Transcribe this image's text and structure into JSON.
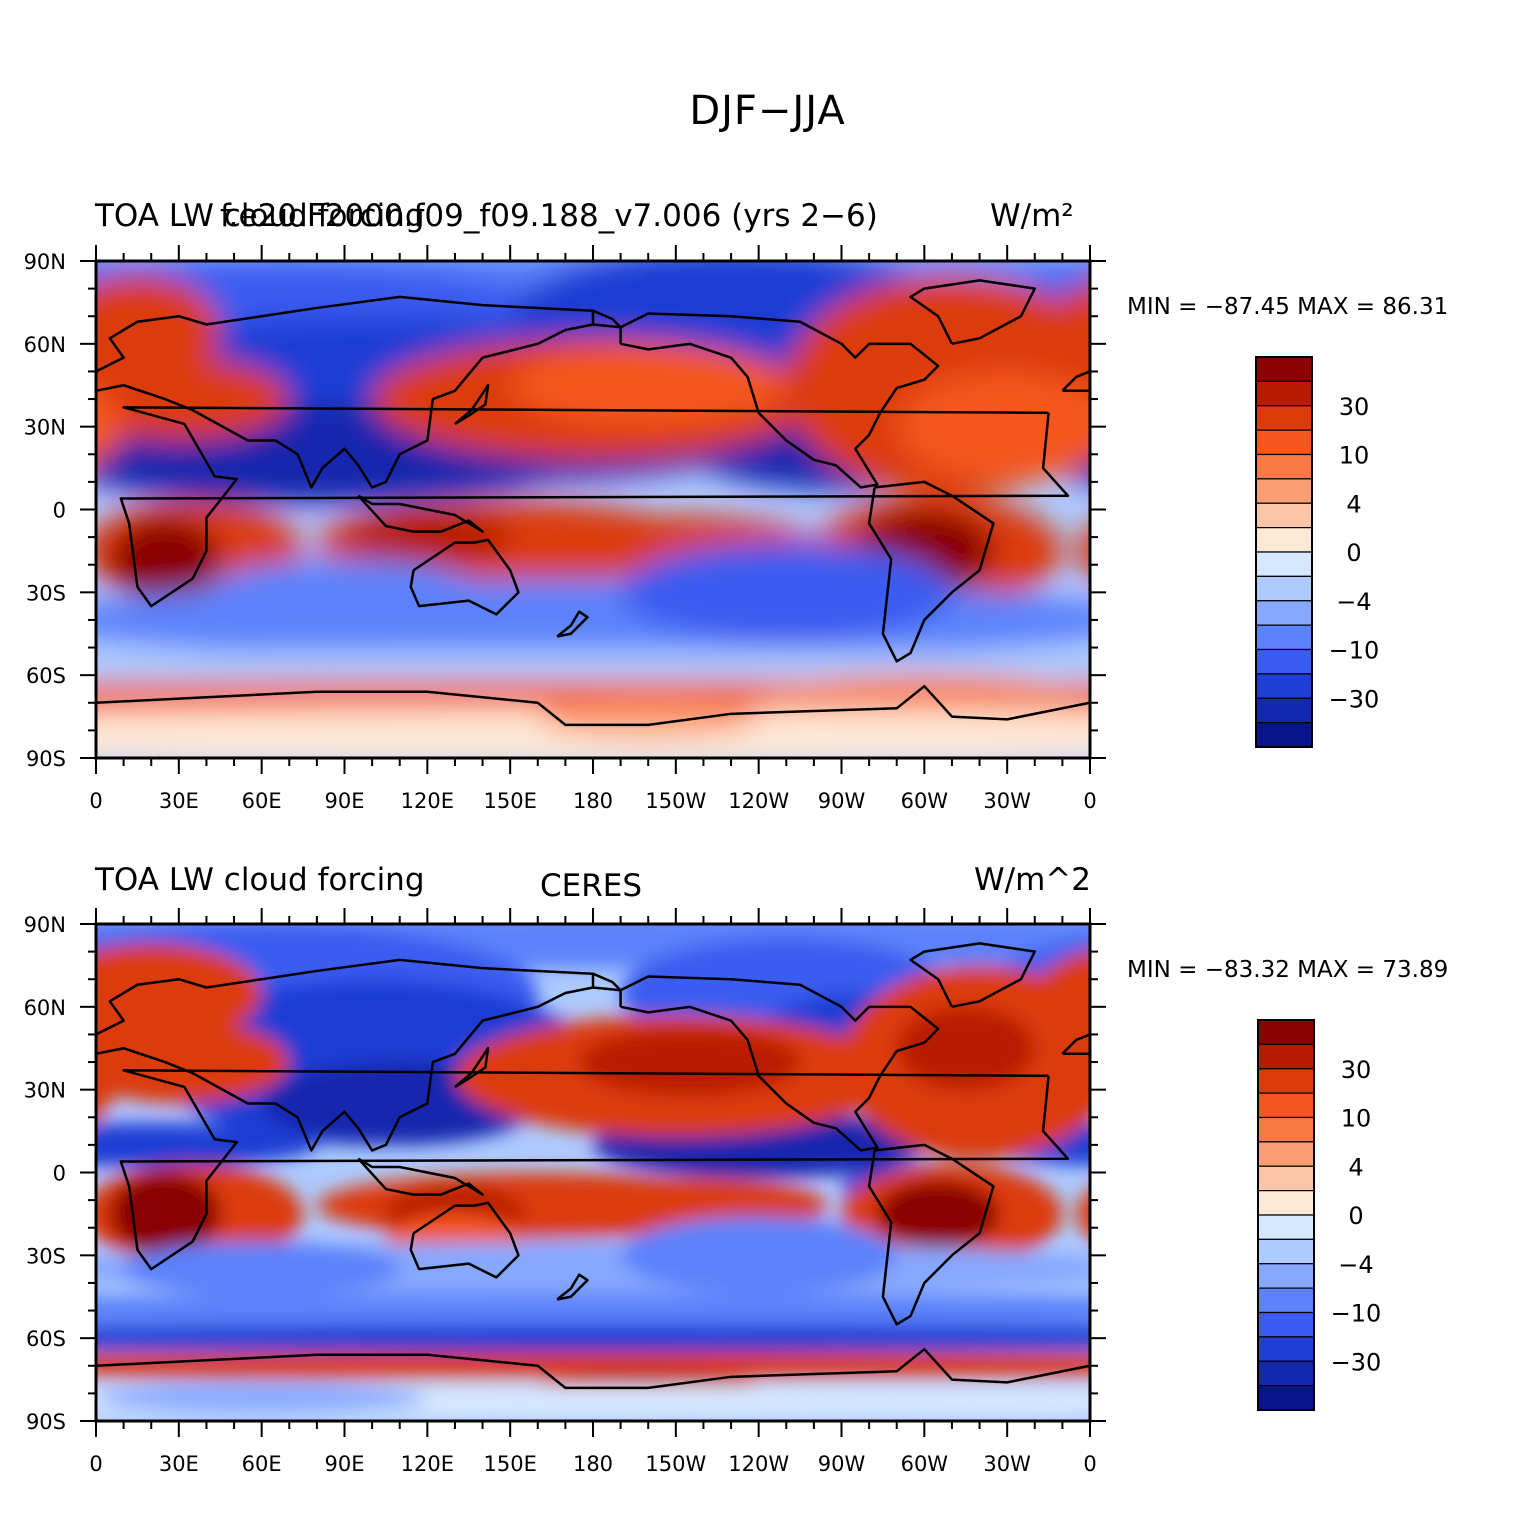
{
  "figure": {
    "title": "DJF−JJA"
  },
  "panels": [
    {
      "left_title": "TOA LW cloud forcing",
      "center_title": "f.e20.F2000.f09_f09.188_v7.006 (yrs 2−6)",
      "right_title": "W/m²",
      "min_max": "MIN = −87.45  MAX =   86.31"
    },
    {
      "left_title": "TOA LW cloud forcing",
      "center_title": "CERES",
      "right_title": "W/m^2",
      "min_max": "MIN = −83.32  MAX =   73.89"
    }
  ],
  "axes": {
    "lon_labels": [
      "0",
      "30E",
      "60E",
      "90E",
      "120E",
      "150E",
      "180",
      "150W",
      "120W",
      "90W",
      "60W",
      "30W",
      "0"
    ],
    "lat_labels": [
      "90N",
      "60N",
      "30N",
      "0",
      "30S",
      "60S",
      "90S"
    ]
  },
  "colorbar": {
    "labels": [
      "30",
      "10",
      "4",
      "0",
      "−4",
      "−10",
      "−30"
    ],
    "colors": [
      "#8b0000",
      "#b81c00",
      "#dc3a08",
      "#f4561e",
      "#f97a45",
      "#fb9e74",
      "#fcc5a8",
      "#fee8d6",
      "#d6e8ff",
      "#aecbff",
      "#86a8ff",
      "#5c82fb",
      "#3a5cf0",
      "#1f3ed4",
      "#1228ae",
      "#08148a"
    ]
  },
  "chart_data": {
    "type": "heatmap",
    "maps": [
      {
        "name": "f.e20.F2000.f09_f09.188_v7.006 (yrs 2−6)",
        "variable": "TOA LW cloud forcing",
        "units": "W/m²",
        "season_difference": "DJF−JJA",
        "min": -87.45,
        "max": 86.31,
        "lon_range": [
          0,
          360
        ],
        "lat_range": [
          -90,
          90
        ]
      },
      {
        "name": "CERES",
        "variable": "TOA LW cloud forcing",
        "units": "W/m^2",
        "season_difference": "DJF−JJA",
        "min": -83.32,
        "max": 73.89,
        "lon_range": [
          0,
          360
        ],
        "lat_range": [
          -90,
          90
        ]
      }
    ],
    "contour_levels": [
      -50,
      -40,
      -30,
      -20,
      -15,
      -10,
      -6,
      -4,
      -2,
      0,
      2,
      4,
      6,
      10,
      15,
      20,
      30,
      40
    ],
    "colorbar_labels": [
      30,
      10,
      4,
      0,
      -4,
      -10,
      -30
    ]
  }
}
